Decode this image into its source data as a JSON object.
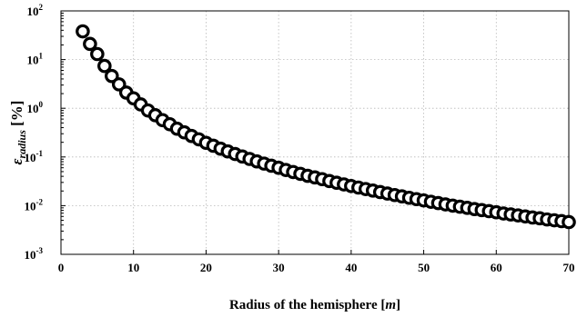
{
  "chart_data": {
    "type": "scatter",
    "xlabel_main": "Radius of the hemisphere [",
    "xlabel_unit": "m",
    "xlabel_close": "]",
    "ylabel_symbol": "ε",
    "ylabel_sub": "radius",
    "ylabel_unit": " [%]",
    "xlim": [
      0,
      70
    ],
    "ylim": [
      0.001,
      100
    ],
    "yscale": "log",
    "xticks": [
      0,
      10,
      20,
      30,
      40,
      50,
      60,
      70
    ],
    "yticks": [
      {
        "value": 0.001,
        "base": "10",
        "exp": "-3"
      },
      {
        "value": 0.01,
        "base": "10",
        "exp": "-2"
      },
      {
        "value": 0.1,
        "base": "10",
        "exp": "-1"
      },
      {
        "value": 1,
        "base": "10",
        "exp": "0"
      },
      {
        "value": 10,
        "base": "10",
        "exp": "1"
      },
      {
        "value": 100,
        "base": "10",
        "exp": "2"
      }
    ],
    "grid": true,
    "marker": "open-circle",
    "x": [
      3,
      4,
      5,
      6,
      7,
      8,
      9,
      10,
      11,
      12,
      13,
      14,
      15,
      16,
      17,
      18,
      19,
      20,
      21,
      22,
      23,
      24,
      25,
      26,
      27,
      28,
      29,
      30,
      31,
      32,
      33,
      34,
      35,
      36,
      37,
      38,
      39,
      40,
      41,
      42,
      43,
      44,
      45,
      46,
      47,
      48,
      49,
      50,
      51,
      52,
      53,
      54,
      55,
      56,
      57,
      58,
      59,
      60,
      61,
      62,
      63,
      64,
      65,
      66,
      67,
      68,
      69,
      70
    ],
    "y": [
      38,
      21,
      13,
      7.4,
      4.6,
      3.1,
      2.1,
      1.6,
      1.2,
      0.9,
      0.72,
      0.57,
      0.47,
      0.38,
      0.32,
      0.27,
      0.23,
      0.195,
      0.17,
      0.148,
      0.13,
      0.115,
      0.102,
      0.091,
      0.081,
      0.073,
      0.066,
      0.06,
      0.054,
      0.049,
      0.045,
      0.041,
      0.038,
      0.035,
      0.032,
      0.0295,
      0.0273,
      0.0253,
      0.0235,
      0.0219,
      0.0204,
      0.019,
      0.0177,
      0.0165,
      0.0155,
      0.0145,
      0.0136,
      0.0128,
      0.012,
      0.0113,
      0.0106,
      0.01,
      0.0095,
      0.009,
      0.0085,
      0.0081,
      0.0077,
      0.0073,
      0.0069,
      0.0066,
      0.0063,
      0.006,
      0.0057,
      0.0055,
      0.0052,
      0.005,
      0.0048,
      0.0046
    ]
  }
}
